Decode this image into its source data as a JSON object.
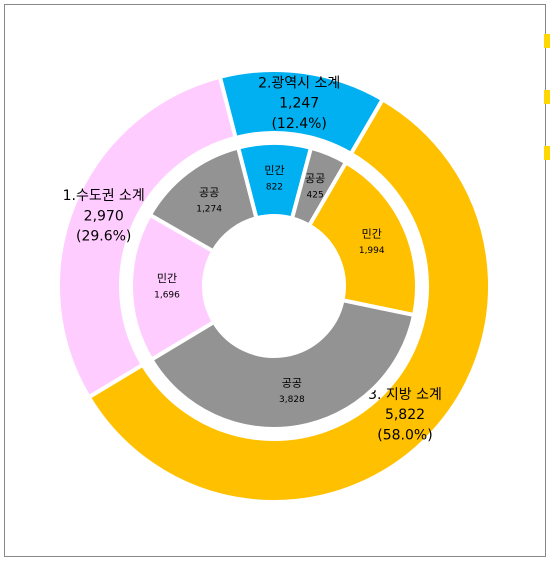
{
  "chart_data": {
    "type": "nested-donut",
    "outer": {
      "categories": [
        "1.수도권 소계",
        "2.광역시 소계",
        "3. 지방 소계"
      ],
      "values": [
        2970,
        1247,
        5822
      ],
      "value_labels": [
        "2,970",
        "1,247",
        "5,822"
      ],
      "percent_labels": [
        "(29.6%)",
        "(12.4%)",
        "(58.0%)"
      ],
      "colors": [
        "#ffccff",
        "#00b0f0",
        "#ffc000"
      ]
    },
    "inner": {
      "categories": [
        "민간",
        "공공",
        "민간",
        "공공",
        "민간",
        "공공"
      ],
      "values": [
        1696,
        1274,
        822,
        425,
        1994,
        3828
      ],
      "value_labels": [
        "1,696",
        "1,274",
        "822",
        "425",
        "1,994",
        "3,828"
      ],
      "colors": [
        "#ffccff",
        "#939393",
        "#00b0f0",
        "#939393",
        "#ffc000",
        "#939393"
      ]
    }
  }
}
